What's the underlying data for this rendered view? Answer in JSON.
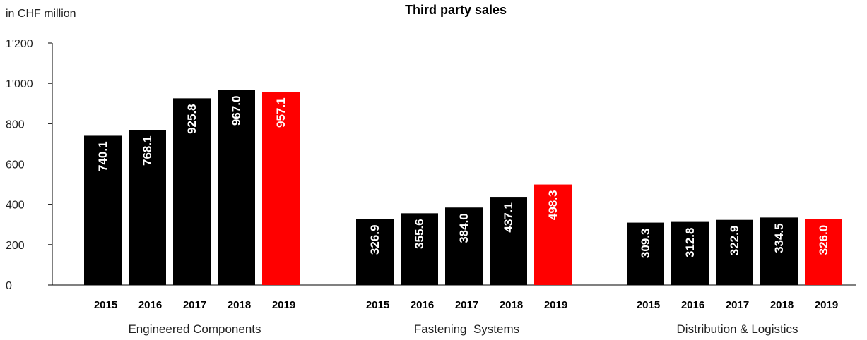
{
  "chart_data": {
    "type": "bar",
    "title": "Third party sales",
    "unit_label": "in CHF million",
    "ylim": [
      0,
      1200
    ],
    "y_ticks": [
      "0",
      "200",
      "400",
      "600",
      "800",
      "1'000",
      "1'200"
    ],
    "grid": false,
    "groups": [
      {
        "name": "Engineered Components",
        "years": [
          "2015",
          "2016",
          "2017",
          "2018",
          "2019"
        ],
        "values": [
          740.1,
          768.1,
          925.8,
          967.0,
          957.1
        ],
        "labels": [
          "740.1",
          "768.1",
          "925.8",
          "967.0",
          "957.1"
        ]
      },
      {
        "name": "Fastening  Systems",
        "years": [
          "2015",
          "2016",
          "2017",
          "2018",
          "2019"
        ],
        "values": [
          326.9,
          355.6,
          384.0,
          437.1,
          498.3
        ],
        "labels": [
          "326.9",
          "355.6",
          "384.0",
          "437.1",
          "498.3"
        ]
      },
      {
        "name": "Distribution & Logistics",
        "years": [
          "2015",
          "2016",
          "2017",
          "2018",
          "2019"
        ],
        "values": [
          309.3,
          312.8,
          322.9,
          334.5,
          326.0
        ],
        "labels": [
          "309.3",
          "312.8",
          "322.9",
          "334.5",
          "326.0"
        ]
      }
    ],
    "colors": {
      "default_bar": "#000000",
      "highlight_bar": "#ff0000",
      "axis": "#000000",
      "value_text": "#ffffff"
    },
    "highlight_year": "2019"
  }
}
